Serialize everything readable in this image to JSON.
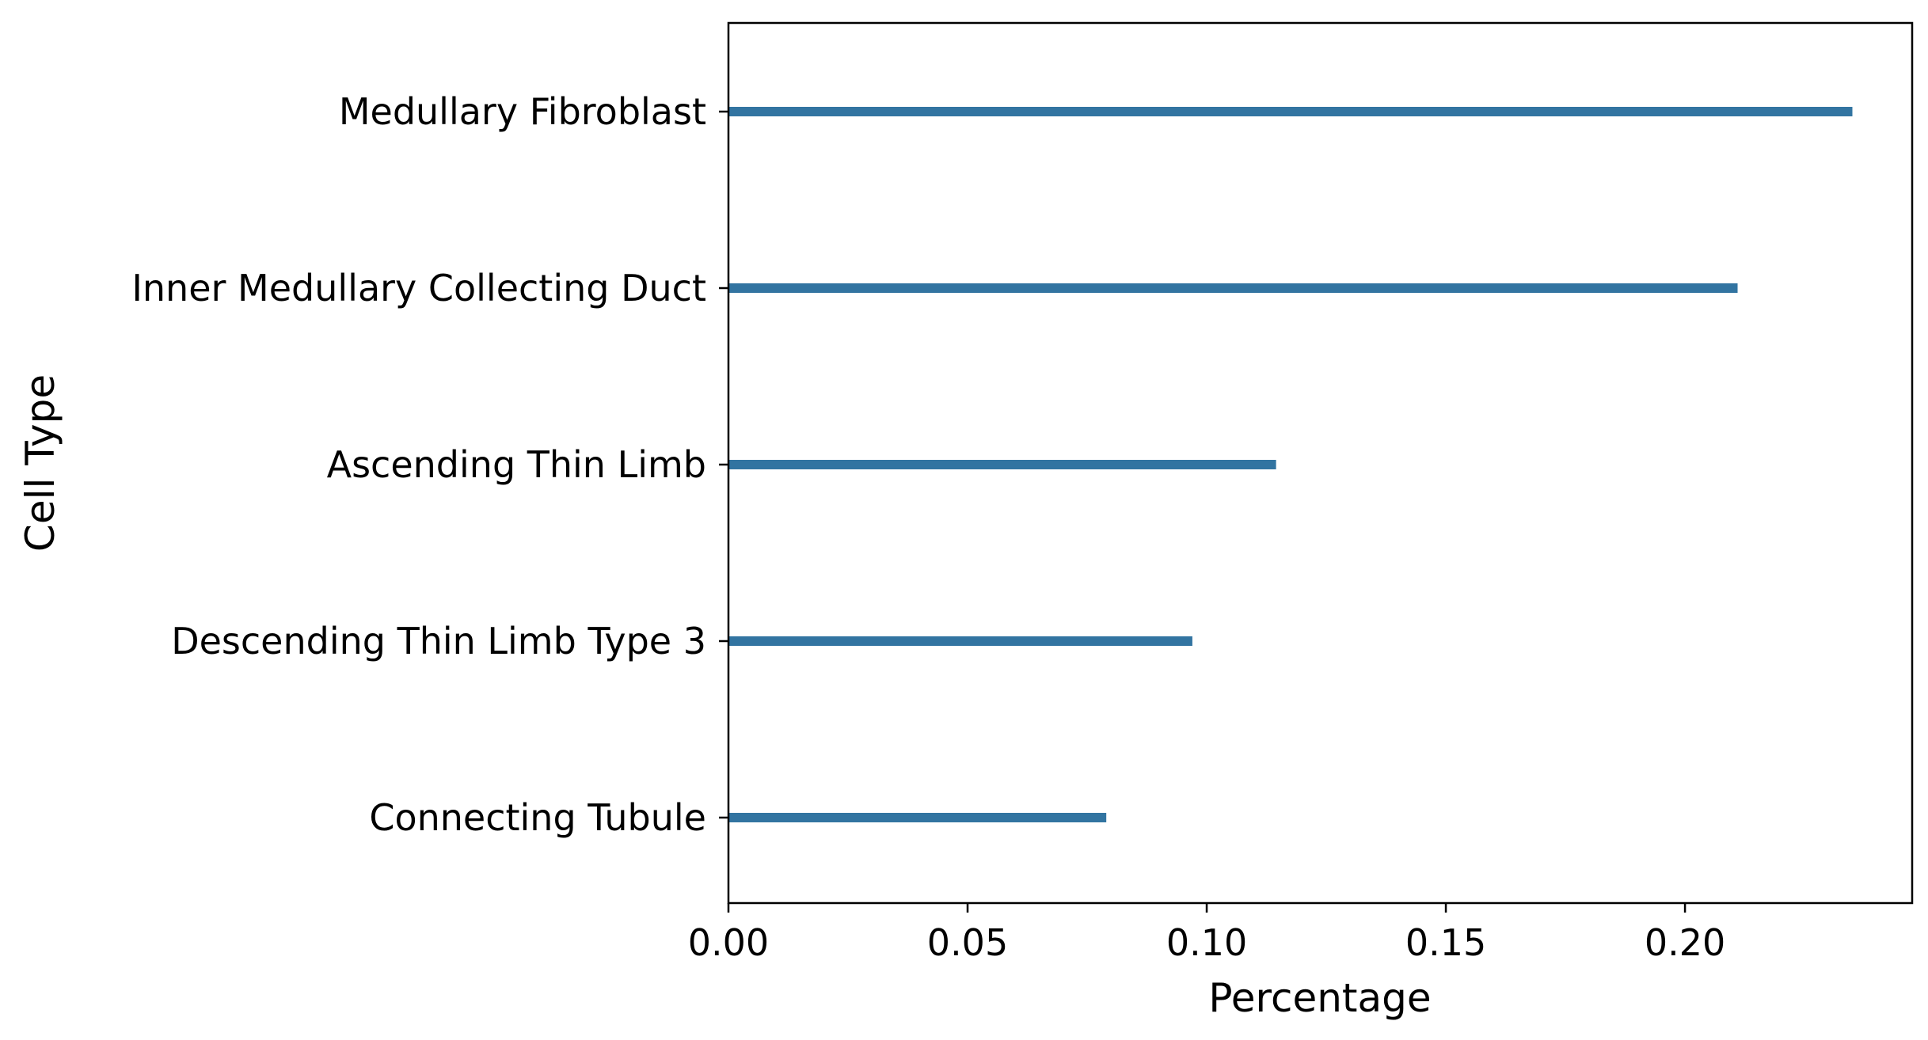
{
  "chart_data": {
    "type": "bar",
    "orientation": "horizontal",
    "categories": [
      "Medullary Fibroblast",
      "Inner Medullary Collecting Duct",
      "Ascending Thin Limb",
      "Descending Thin Limb Type 3",
      "Connecting Tubule"
    ],
    "values": [
      0.235,
      0.211,
      0.1145,
      0.097,
      0.079
    ],
    "xlabel": "Percentage",
    "ylabel": "Cell Type",
    "xlim": [
      0,
      0.2475
    ],
    "xticks": [
      0,
      0.05,
      0.1,
      0.15,
      0.2
    ],
    "xtick_labels": [
      "0.00",
      "0.05",
      "0.10",
      "0.15",
      "0.20"
    ],
    "grid": false,
    "bar_color": "#3274a1"
  }
}
